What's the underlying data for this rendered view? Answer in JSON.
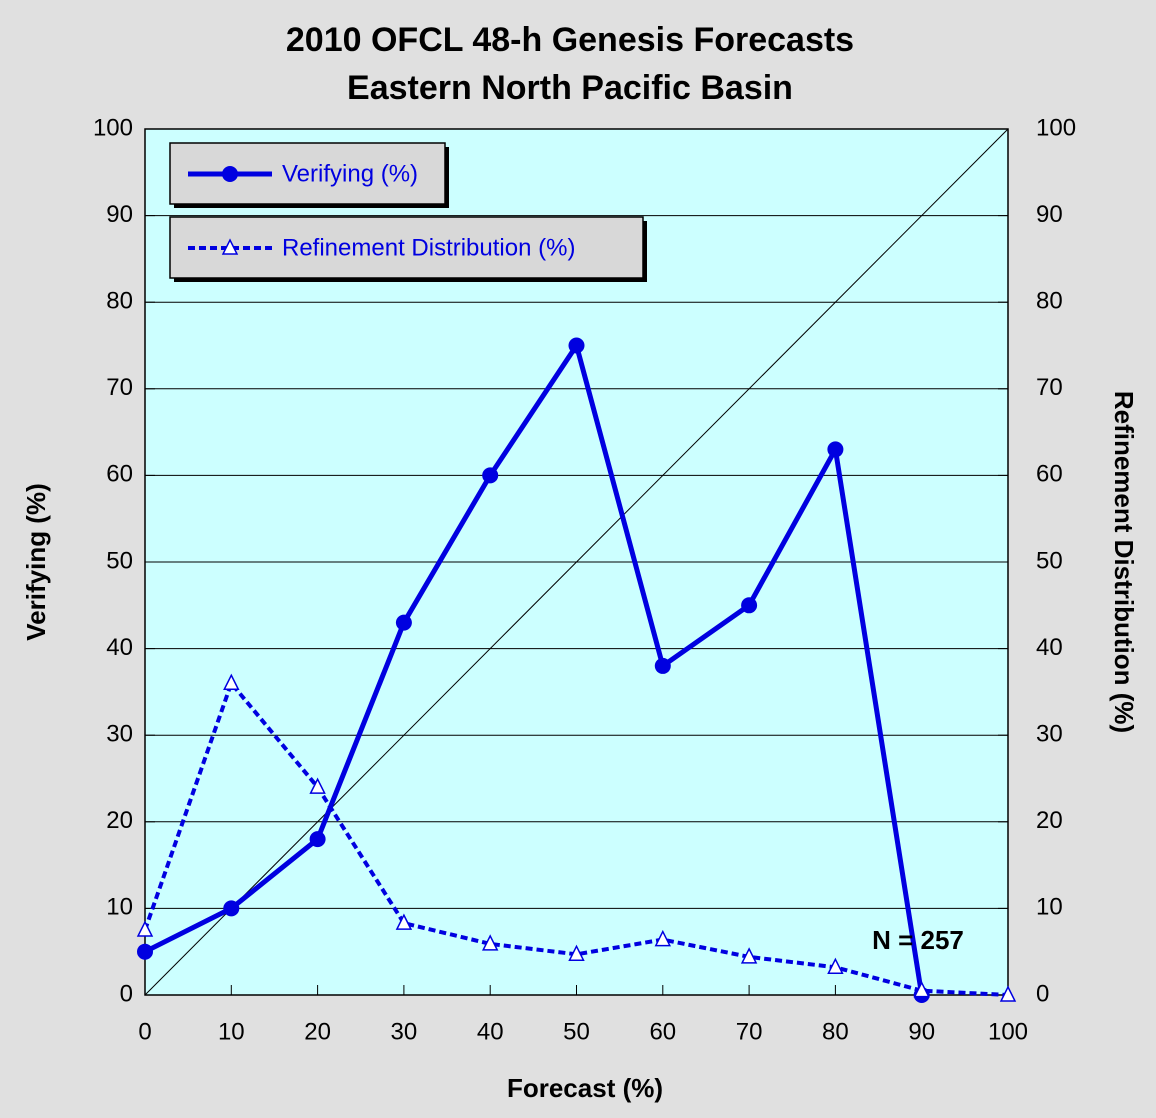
{
  "chart_data": {
    "type": "line",
    "title": "2010 OFCL 48-h Genesis Forecasts",
    "subtitle": "Eastern North Pacific Basin",
    "xlabel": "Forecast (%)",
    "ylabel": "Verifying (%)",
    "y2label": "Refinement Distribution (%)",
    "annotation": "N = 257",
    "x": [
      0,
      10,
      20,
      30,
      40,
      50,
      60,
      70,
      80,
      90,
      100
    ],
    "series": [
      {
        "name": "Verifying (%)",
        "color": "#0000e0",
        "marker": "circle",
        "dashed": false,
        "values": [
          5,
          10,
          18,
          43,
          60,
          75,
          38,
          45,
          63,
          0,
          null
        ]
      },
      {
        "name": "Refinement Distribution (%)",
        "color": "#0000e0",
        "marker": "triangle",
        "dashed": true,
        "axis": "y2",
        "values": [
          7.5,
          36,
          24,
          8.3,
          5.9,
          4.7,
          6.4,
          4.4,
          3.2,
          0.5,
          0
        ]
      }
    ],
    "xlim": [
      0,
      100
    ],
    "xticks": [
      0,
      10,
      20,
      30,
      40,
      50,
      60,
      70,
      80,
      90,
      100
    ],
    "ylim": [
      0,
      100
    ],
    "yticks": [
      0,
      10,
      20,
      30,
      40,
      50,
      60,
      70,
      80,
      90,
      100
    ],
    "y2lim": [
      0,
      100
    ],
    "y2ticks": [
      0,
      10,
      20,
      30,
      40,
      50,
      60,
      70,
      80,
      90,
      100
    ],
    "grid": true,
    "legend": "upper left"
  }
}
